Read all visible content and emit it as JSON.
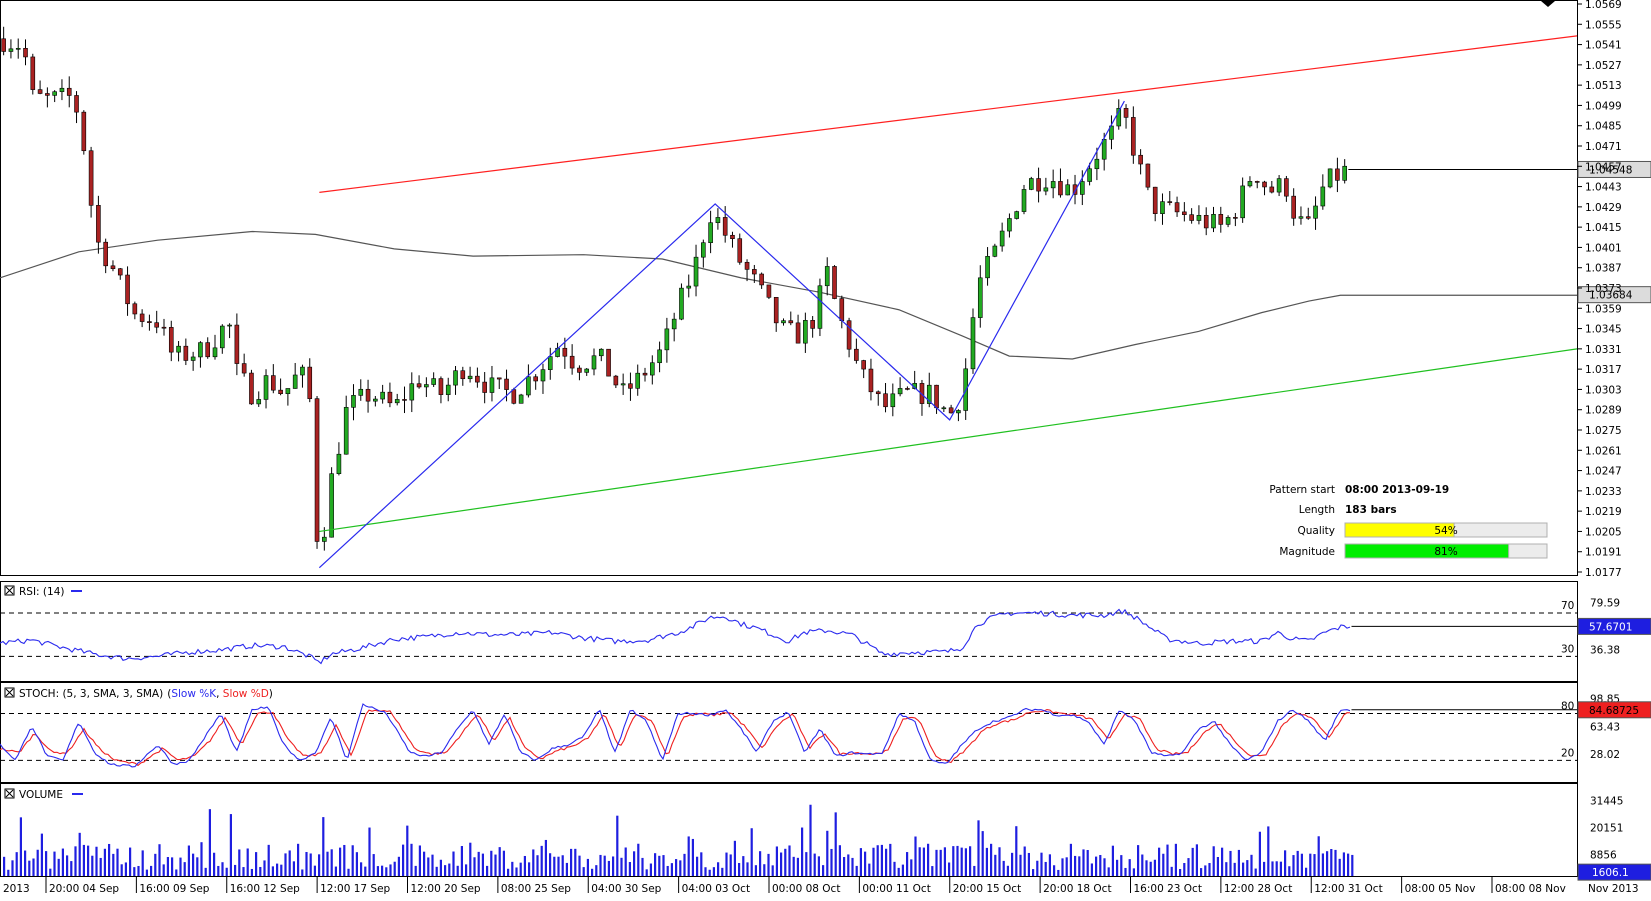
{
  "chart_data": {
    "type": "candlestick",
    "instrument_note": "",
    "price_axis": {
      "ticks": [
        "1.0569",
        "1.0555",
        "1.0541",
        "1.0527",
        "1.0513",
        "1.0499",
        "1.0485",
        "1.0471",
        "1.0457",
        "1.0443",
        "1.0429",
        "1.0415",
        "1.0401",
        "1.0387",
        "1.0373",
        "1.0359",
        "1.0345",
        "1.0331",
        "1.0317",
        "1.0303",
        "1.0289",
        "1.0275",
        "1.0261",
        "1.0247",
        "1.0233",
        "1.0219",
        "1.0205",
        "1.0191",
        "1.0177"
      ],
      "ylim": [
        1.0177,
        1.0569
      ],
      "current_price_label": "1.04548",
      "current_price": 1.04548,
      "ma_label": "1.03684",
      "ma_value": 1.03684
    },
    "time_axis": {
      "ticks": [
        "2013",
        "20:00 04 Sep",
        "16:00 09 Sep",
        "16:00 12 Sep",
        "12:00 17 Sep",
        "12:00 20 Sep",
        "08:00 25 Sep",
        "04:00 30 Sep",
        "04:00 03 Oct",
        "00:00 08 Oct",
        "00:00 11 Oct",
        "20:00 15 Oct",
        "20:00 18 Oct",
        "16:00 23 Oct",
        "12:00 28 Oct",
        "12:00 31 Oct",
        "08:00 05 Nov",
        "08:00 08 Nov",
        "Nov 2013"
      ]
    },
    "pattern_info": {
      "pattern_start_label": "Pattern start",
      "pattern_start_value": "08:00 2013-09-19",
      "length_label": "Length",
      "length_value": "183 bars",
      "quality_label": "Quality",
      "quality_value": "54%",
      "quality": 0.54,
      "magnitude_label": "Magnitude",
      "magnitude_value": "81%",
      "magnitude": 0.81,
      "quality_color": "#ffff00",
      "magnitude_color": "#00ee00"
    },
    "pattern_lines": {
      "upper": {
        "color": "#ff2020",
        "from": [
          0.2025,
          1.0439
        ],
        "to": [
          1.0,
          1.0547
        ]
      },
      "lower": {
        "color": "#20c020",
        "from": [
          0.2025,
          1.0205
        ],
        "to": [
          1.0,
          1.0331
        ]
      },
      "zigzag_color": "#2a2aee",
      "zigzag": [
        [
          0.2025,
          1.018
        ],
        [
          0.4535,
          1.0431
        ],
        [
          0.6022,
          1.0282
        ],
        [
          0.713,
          1.0502
        ]
      ]
    },
    "candle_path": [
      [
        0.0,
        1.0545
      ],
      [
        0.015,
        1.054
      ],
      [
        0.02,
        1.0505
      ],
      [
        0.03,
        1.0503
      ],
      [
        0.047,
        1.0505
      ],
      [
        0.055,
        1.046
      ],
      [
        0.06,
        1.0408
      ],
      [
        0.07,
        1.039
      ],
      [
        0.085,
        1.0355
      ],
      [
        0.1,
        1.035
      ],
      [
        0.11,
        1.0325
      ],
      [
        0.13,
        1.033
      ],
      [
        0.145,
        1.035
      ],
      [
        0.15,
        1.0315
      ],
      [
        0.16,
        1.03
      ],
      [
        0.17,
        1.031
      ],
      [
        0.18,
        1.03
      ],
      [
        0.19,
        1.0315
      ],
      [
        0.196,
        1.0305
      ],
      [
        0.2,
        1.0215
      ],
      [
        0.2025,
        1.0185
      ],
      [
        0.21,
        1.024
      ],
      [
        0.22,
        1.029
      ],
      [
        0.235,
        1.03
      ],
      [
        0.25,
        1.029
      ],
      [
        0.265,
        1.031
      ],
      [
        0.28,
        1.03
      ],
      [
        0.295,
        1.032
      ],
      [
        0.31,
        1.0305
      ],
      [
        0.325,
        1.03
      ],
      [
        0.34,
        1.0315
      ],
      [
        0.355,
        1.0335
      ],
      [
        0.365,
        1.032
      ],
      [
        0.38,
        1.0325
      ],
      [
        0.395,
        1.03
      ],
      [
        0.405,
        1.031
      ],
      [
        0.42,
        1.033
      ],
      [
        0.43,
        1.036
      ],
      [
        0.44,
        1.0385
      ],
      [
        0.45,
        1.0425
      ],
      [
        0.455,
        1.042
      ],
      [
        0.47,
        1.039
      ],
      [
        0.48,
        1.0375
      ],
      [
        0.495,
        1.0345
      ],
      [
        0.505,
        1.034
      ],
      [
        0.515,
        1.035
      ],
      [
        0.525,
        1.0385
      ],
      [
        0.53,
        1.036
      ],
      [
        0.545,
        1.0315
      ],
      [
        0.56,
        1.029
      ],
      [
        0.575,
        1.03
      ],
      [
        0.59,
        1.03
      ],
      [
        0.602,
        1.0285
      ],
      [
        0.61,
        1.03
      ],
      [
        0.62,
        1.0375
      ],
      [
        0.63,
        1.0395
      ],
      [
        0.64,
        1.042
      ],
      [
        0.65,
        1.0445
      ],
      [
        0.665,
        1.045
      ],
      [
        0.68,
        1.044
      ],
      [
        0.695,
        1.0465
      ],
      [
        0.705,
        1.048
      ],
      [
        0.712,
        1.0495
      ],
      [
        0.72,
        1.0465
      ],
      [
        0.73,
        1.043
      ],
      [
        0.745,
        1.0425
      ],
      [
        0.76,
        1.042
      ],
      [
        0.775,
        1.0415
      ],
      [
        0.785,
        1.043
      ],
      [
        0.795,
        1.0455
      ],
      [
        0.805,
        1.044
      ],
      [
        0.815,
        1.0445
      ],
      [
        0.822,
        1.042
      ],
      [
        0.83,
        1.0415
      ],
      [
        0.84,
        1.0445
      ],
      [
        0.855,
        1.0455
      ]
    ],
    "ma_path": [
      [
        0.0,
        1.038
      ],
      [
        0.05,
        1.0398
      ],
      [
        0.1,
        1.0406
      ],
      [
        0.16,
        1.0412
      ],
      [
        0.2,
        1.041
      ],
      [
        0.25,
        1.04
      ],
      [
        0.3,
        1.0395
      ],
      [
        0.37,
        1.0396
      ],
      [
        0.42,
        1.0393
      ],
      [
        0.47,
        1.038
      ],
      [
        0.52,
        1.037
      ],
      [
        0.57,
        1.0358
      ],
      [
        0.61,
        1.034
      ],
      [
        0.64,
        1.0326
      ],
      [
        0.68,
        1.0324
      ],
      [
        0.72,
        1.0334
      ],
      [
        0.76,
        1.0343
      ],
      [
        0.8,
        1.0356
      ],
      [
        0.83,
        1.0364
      ],
      [
        0.85,
        1.0368
      ],
      [
        1.0,
        1.0368
      ]
    ],
    "rsi": {
      "label": "RSI: (14)",
      "line_color": "#2a2aee",
      "levels": [
        70,
        30
      ],
      "level_labels": [
        "70",
        "30"
      ],
      "axis_labels": [
        "79.59",
        "36.38"
      ],
      "current_label": "57.6701",
      "current": 57.67,
      "path": [
        [
          0.0,
          42
        ],
        [
          0.02,
          45
        ],
        [
          0.04,
          38
        ],
        [
          0.06,
          32
        ],
        [
          0.08,
          28
        ],
        [
          0.1,
          30
        ],
        [
          0.12,
          34
        ],
        [
          0.14,
          36
        ],
        [
          0.16,
          40
        ],
        [
          0.18,
          39
        ],
        [
          0.196,
          30
        ],
        [
          0.2025,
          24
        ],
        [
          0.21,
          32
        ],
        [
          0.23,
          38
        ],
        [
          0.25,
          46
        ],
        [
          0.27,
          48
        ],
        [
          0.29,
          52
        ],
        [
          0.31,
          50
        ],
        [
          0.33,
          50
        ],
        [
          0.35,
          52
        ],
        [
          0.37,
          47
        ],
        [
          0.39,
          44
        ],
        [
          0.41,
          45
        ],
        [
          0.43,
          52
        ],
        [
          0.44,
          58
        ],
        [
          0.45,
          66
        ],
        [
          0.46,
          67
        ],
        [
          0.47,
          60
        ],
        [
          0.48,
          56
        ],
        [
          0.5,
          44
        ],
        [
          0.51,
          52
        ],
        [
          0.525,
          54
        ],
        [
          0.54,
          50
        ],
        [
          0.56,
          32
        ],
        [
          0.58,
          34
        ],
        [
          0.6,
          34
        ],
        [
          0.61,
          38
        ],
        [
          0.62,
          60
        ],
        [
          0.63,
          66
        ],
        [
          0.64,
          70
        ],
        [
          0.66,
          70
        ],
        [
          0.68,
          68
        ],
        [
          0.7,
          68
        ],
        [
          0.712,
          72
        ],
        [
          0.72,
          66
        ],
        [
          0.74,
          46
        ],
        [
          0.76,
          42
        ],
        [
          0.78,
          44
        ],
        [
          0.8,
          44
        ],
        [
          0.81,
          52
        ],
        [
          0.82,
          46
        ],
        [
          0.83,
          44
        ],
        [
          0.84,
          52
        ],
        [
          0.85,
          57
        ],
        [
          0.855,
          57.67
        ],
        [
          1.0,
          57.67
        ]
      ]
    },
    "stochastic": {
      "label": "STOCH: (5, 3, SMA, 3, SMA)",
      "k_label": "Slow %K",
      "d_label": "Slow %D",
      "k_color": "#2a2aee",
      "d_color": "#ee2020",
      "levels": [
        80,
        20
      ],
      "level_labels": [
        "80",
        "20"
      ],
      "axis_labels": [
        "98.85",
        "63.43",
        "28.02"
      ],
      "current_label": "84.68725",
      "current": 84.69,
      "k_path": [
        [
          0.0,
          40
        ],
        [
          0.01,
          20
        ],
        [
          0.02,
          65
        ],
        [
          0.03,
          25
        ],
        [
          0.04,
          20
        ],
        [
          0.05,
          70
        ],
        [
          0.06,
          30
        ],
        [
          0.07,
          15
        ],
        [
          0.085,
          12
        ],
        [
          0.1,
          40
        ],
        [
          0.11,
          15
        ],
        [
          0.12,
          20
        ],
        [
          0.13,
          50
        ],
        [
          0.14,
          80
        ],
        [
          0.15,
          30
        ],
        [
          0.16,
          85
        ],
        [
          0.17,
          88
        ],
        [
          0.18,
          40
        ],
        [
          0.19,
          20
        ],
        [
          0.2,
          30
        ],
        [
          0.21,
          75
        ],
        [
          0.22,
          20
        ],
        [
          0.23,
          92
        ],
        [
          0.245,
          80
        ],
        [
          0.26,
          30
        ],
        [
          0.27,
          25
        ],
        [
          0.28,
          30
        ],
        [
          0.29,
          60
        ],
        [
          0.3,
          85
        ],
        [
          0.31,
          40
        ],
        [
          0.32,
          80
        ],
        [
          0.33,
          30
        ],
        [
          0.34,
          20
        ],
        [
          0.35,
          35
        ],
        [
          0.36,
          40
        ],
        [
          0.37,
          50
        ],
        [
          0.38,
          85
        ],
        [
          0.39,
          30
        ],
        [
          0.4,
          85
        ],
        [
          0.41,
          70
        ],
        [
          0.42,
          20
        ],
        [
          0.43,
          80
        ],
        [
          0.44,
          80
        ],
        [
          0.45,
          78
        ],
        [
          0.46,
          85
        ],
        [
          0.47,
          60
        ],
        [
          0.48,
          30
        ],
        [
          0.49,
          70
        ],
        [
          0.5,
          82
        ],
        [
          0.51,
          30
        ],
        [
          0.52,
          60
        ],
        [
          0.53,
          25
        ],
        [
          0.54,
          30
        ],
        [
          0.55,
          28
        ],
        [
          0.56,
          30
        ],
        [
          0.57,
          80
        ],
        [
          0.58,
          70
        ],
        [
          0.59,
          20
        ],
        [
          0.6,
          15
        ],
        [
          0.61,
          40
        ],
        [
          0.62,
          60
        ],
        [
          0.63,
          70
        ],
        [
          0.64,
          75
        ],
        [
          0.65,
          85
        ],
        [
          0.66,
          85
        ],
        [
          0.67,
          78
        ],
        [
          0.68,
          78
        ],
        [
          0.69,
          70
        ],
        [
          0.7,
          40
        ],
        [
          0.71,
          85
        ],
        [
          0.72,
          70
        ],
        [
          0.73,
          30
        ],
        [
          0.74,
          25
        ],
        [
          0.75,
          30
        ],
        [
          0.76,
          60
        ],
        [
          0.77,
          70
        ],
        [
          0.78,
          40
        ],
        [
          0.79,
          20
        ],
        [
          0.8,
          30
        ],
        [
          0.81,
          70
        ],
        [
          0.82,
          85
        ],
        [
          0.83,
          70
        ],
        [
          0.84,
          45
        ],
        [
          0.85,
          85
        ],
        [
          0.855,
          84.69
        ],
        [
          1.0,
          84.69
        ]
      ],
      "d_path": [
        [
          0.0,
          35
        ],
        [
          0.012,
          30
        ],
        [
          0.022,
          55
        ],
        [
          0.033,
          30
        ],
        [
          0.043,
          30
        ],
        [
          0.053,
          60
        ],
        [
          0.063,
          35
        ],
        [
          0.073,
          20
        ],
        [
          0.088,
          15
        ],
        [
          0.103,
          35
        ],
        [
          0.113,
          20
        ],
        [
          0.123,
          25
        ],
        [
          0.133,
          45
        ],
        [
          0.143,
          75
        ],
        [
          0.153,
          40
        ],
        [
          0.163,
          80
        ],
        [
          0.173,
          82
        ],
        [
          0.183,
          45
        ],
        [
          0.193,
          25
        ],
        [
          0.203,
          28
        ],
        [
          0.213,
          65
        ],
        [
          0.223,
          25
        ],
        [
          0.233,
          85
        ],
        [
          0.248,
          82
        ],
        [
          0.263,
          35
        ],
        [
          0.273,
          28
        ],
        [
          0.283,
          30
        ],
        [
          0.293,
          55
        ],
        [
          0.303,
          80
        ],
        [
          0.313,
          45
        ],
        [
          0.323,
          75
        ],
        [
          0.333,
          35
        ],
        [
          0.343,
          22
        ],
        [
          0.353,
          32
        ],
        [
          0.363,
          38
        ],
        [
          0.373,
          48
        ],
        [
          0.383,
          80
        ],
        [
          0.393,
          35
        ],
        [
          0.403,
          80
        ],
        [
          0.413,
          72
        ],
        [
          0.423,
          25
        ],
        [
          0.433,
          75
        ],
        [
          0.443,
          80
        ],
        [
          0.453,
          78
        ],
        [
          0.463,
          82
        ],
        [
          0.473,
          62
        ],
        [
          0.483,
          35
        ],
        [
          0.493,
          65
        ],
        [
          0.503,
          80
        ],
        [
          0.513,
          35
        ],
        [
          0.523,
          55
        ],
        [
          0.533,
          28
        ],
        [
          0.543,
          30
        ],
        [
          0.553,
          28
        ],
        [
          0.563,
          32
        ],
        [
          0.573,
          75
        ],
        [
          0.583,
          72
        ],
        [
          0.593,
          25
        ],
        [
          0.603,
          18
        ],
        [
          0.613,
          35
        ],
        [
          0.623,
          58
        ],
        [
          0.633,
          68
        ],
        [
          0.643,
          72
        ],
        [
          0.653,
          82
        ],
        [
          0.663,
          84
        ],
        [
          0.673,
          80
        ],
        [
          0.683,
          78
        ],
        [
          0.693,
          72
        ],
        [
          0.703,
          45
        ],
        [
          0.713,
          80
        ],
        [
          0.723,
          72
        ],
        [
          0.733,
          35
        ],
        [
          0.743,
          28
        ],
        [
          0.753,
          30
        ],
        [
          0.763,
          55
        ],
        [
          0.773,
          68
        ],
        [
          0.783,
          45
        ],
        [
          0.793,
          25
        ],
        [
          0.803,
          28
        ],
        [
          0.813,
          65
        ],
        [
          0.823,
          82
        ],
        [
          0.833,
          72
        ],
        [
          0.843,
          50
        ],
        [
          0.853,
          80
        ],
        [
          0.86,
          84.69
        ],
        [
          1.0,
          84.69
        ]
      ]
    },
    "volume": {
      "label": "VOLUME",
      "bar_color": "#1e1ee0",
      "axis_labels": [
        "31445",
        "20151",
        "8856"
      ],
      "current_label": "1606.1",
      "current": 1606.1,
      "bars_until": 0.857
    }
  }
}
